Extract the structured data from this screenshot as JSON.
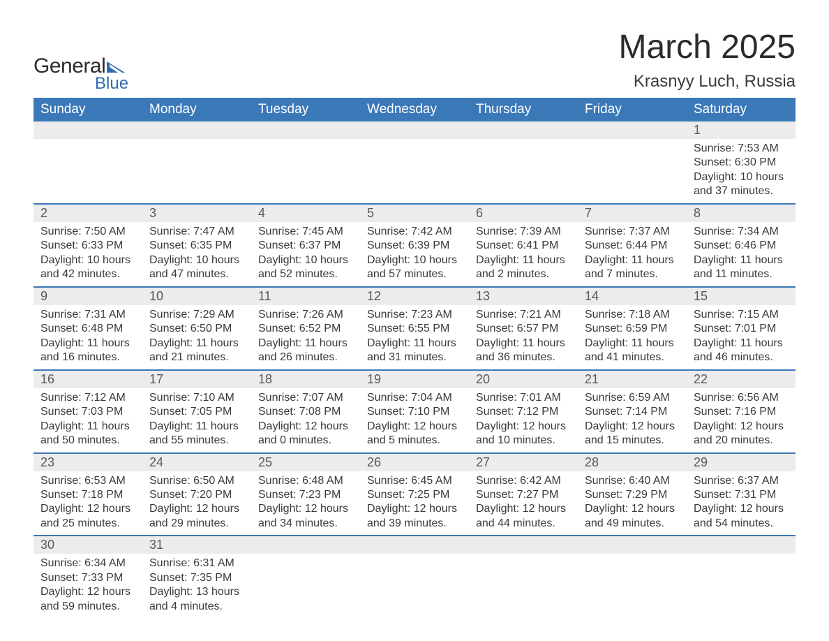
{
  "logo": {
    "general": "General",
    "blue": "Blue"
  },
  "title": "March 2025",
  "location": "Krasnyy Luch, Russia",
  "colors": {
    "header_bg": "#3b78b8",
    "header_text": "#ffffff",
    "daynum_bg": "#ececec",
    "daynum_text": "#595959",
    "body_text": "#3a3a3a",
    "border": "#3b78b8",
    "logo_blue": "#2e6bb0"
  },
  "dow": [
    "Sunday",
    "Monday",
    "Tuesday",
    "Wednesday",
    "Thursday",
    "Friday",
    "Saturday"
  ],
  "weeks": [
    [
      null,
      null,
      null,
      null,
      null,
      null,
      {
        "n": "1",
        "sr": "Sunrise: 7:53 AM",
        "ss": "Sunset: 6:30 PM",
        "d1": "Daylight: 10 hours",
        "d2": "and 37 minutes."
      }
    ],
    [
      {
        "n": "2",
        "sr": "Sunrise: 7:50 AM",
        "ss": "Sunset: 6:33 PM",
        "d1": "Daylight: 10 hours",
        "d2": "and 42 minutes."
      },
      {
        "n": "3",
        "sr": "Sunrise: 7:47 AM",
        "ss": "Sunset: 6:35 PM",
        "d1": "Daylight: 10 hours",
        "d2": "and 47 minutes."
      },
      {
        "n": "4",
        "sr": "Sunrise: 7:45 AM",
        "ss": "Sunset: 6:37 PM",
        "d1": "Daylight: 10 hours",
        "d2": "and 52 minutes."
      },
      {
        "n": "5",
        "sr": "Sunrise: 7:42 AM",
        "ss": "Sunset: 6:39 PM",
        "d1": "Daylight: 10 hours",
        "d2": "and 57 minutes."
      },
      {
        "n": "6",
        "sr": "Sunrise: 7:39 AM",
        "ss": "Sunset: 6:41 PM",
        "d1": "Daylight: 11 hours",
        "d2": "and 2 minutes."
      },
      {
        "n": "7",
        "sr": "Sunrise: 7:37 AM",
        "ss": "Sunset: 6:44 PM",
        "d1": "Daylight: 11 hours",
        "d2": "and 7 minutes."
      },
      {
        "n": "8",
        "sr": "Sunrise: 7:34 AM",
        "ss": "Sunset: 6:46 PM",
        "d1": "Daylight: 11 hours",
        "d2": "and 11 minutes."
      }
    ],
    [
      {
        "n": "9",
        "sr": "Sunrise: 7:31 AM",
        "ss": "Sunset: 6:48 PM",
        "d1": "Daylight: 11 hours",
        "d2": "and 16 minutes."
      },
      {
        "n": "10",
        "sr": "Sunrise: 7:29 AM",
        "ss": "Sunset: 6:50 PM",
        "d1": "Daylight: 11 hours",
        "d2": "and 21 minutes."
      },
      {
        "n": "11",
        "sr": "Sunrise: 7:26 AM",
        "ss": "Sunset: 6:52 PM",
        "d1": "Daylight: 11 hours",
        "d2": "and 26 minutes."
      },
      {
        "n": "12",
        "sr": "Sunrise: 7:23 AM",
        "ss": "Sunset: 6:55 PM",
        "d1": "Daylight: 11 hours",
        "d2": "and 31 minutes."
      },
      {
        "n": "13",
        "sr": "Sunrise: 7:21 AM",
        "ss": "Sunset: 6:57 PM",
        "d1": "Daylight: 11 hours",
        "d2": "and 36 minutes."
      },
      {
        "n": "14",
        "sr": "Sunrise: 7:18 AM",
        "ss": "Sunset: 6:59 PM",
        "d1": "Daylight: 11 hours",
        "d2": "and 41 minutes."
      },
      {
        "n": "15",
        "sr": "Sunrise: 7:15 AM",
        "ss": "Sunset: 7:01 PM",
        "d1": "Daylight: 11 hours",
        "d2": "and 46 minutes."
      }
    ],
    [
      {
        "n": "16",
        "sr": "Sunrise: 7:12 AM",
        "ss": "Sunset: 7:03 PM",
        "d1": "Daylight: 11 hours",
        "d2": "and 50 minutes."
      },
      {
        "n": "17",
        "sr": "Sunrise: 7:10 AM",
        "ss": "Sunset: 7:05 PM",
        "d1": "Daylight: 11 hours",
        "d2": "and 55 minutes."
      },
      {
        "n": "18",
        "sr": "Sunrise: 7:07 AM",
        "ss": "Sunset: 7:08 PM",
        "d1": "Daylight: 12 hours",
        "d2": "and 0 minutes."
      },
      {
        "n": "19",
        "sr": "Sunrise: 7:04 AM",
        "ss": "Sunset: 7:10 PM",
        "d1": "Daylight: 12 hours",
        "d2": "and 5 minutes."
      },
      {
        "n": "20",
        "sr": "Sunrise: 7:01 AM",
        "ss": "Sunset: 7:12 PM",
        "d1": "Daylight: 12 hours",
        "d2": "and 10 minutes."
      },
      {
        "n": "21",
        "sr": "Sunrise: 6:59 AM",
        "ss": "Sunset: 7:14 PM",
        "d1": "Daylight: 12 hours",
        "d2": "and 15 minutes."
      },
      {
        "n": "22",
        "sr": "Sunrise: 6:56 AM",
        "ss": "Sunset: 7:16 PM",
        "d1": "Daylight: 12 hours",
        "d2": "and 20 minutes."
      }
    ],
    [
      {
        "n": "23",
        "sr": "Sunrise: 6:53 AM",
        "ss": "Sunset: 7:18 PM",
        "d1": "Daylight: 12 hours",
        "d2": "and 25 minutes."
      },
      {
        "n": "24",
        "sr": "Sunrise: 6:50 AM",
        "ss": "Sunset: 7:20 PM",
        "d1": "Daylight: 12 hours",
        "d2": "and 29 minutes."
      },
      {
        "n": "25",
        "sr": "Sunrise: 6:48 AM",
        "ss": "Sunset: 7:23 PM",
        "d1": "Daylight: 12 hours",
        "d2": "and 34 minutes."
      },
      {
        "n": "26",
        "sr": "Sunrise: 6:45 AM",
        "ss": "Sunset: 7:25 PM",
        "d1": "Daylight: 12 hours",
        "d2": "and 39 minutes."
      },
      {
        "n": "27",
        "sr": "Sunrise: 6:42 AM",
        "ss": "Sunset: 7:27 PM",
        "d1": "Daylight: 12 hours",
        "d2": "and 44 minutes."
      },
      {
        "n": "28",
        "sr": "Sunrise: 6:40 AM",
        "ss": "Sunset: 7:29 PM",
        "d1": "Daylight: 12 hours",
        "d2": "and 49 minutes."
      },
      {
        "n": "29",
        "sr": "Sunrise: 6:37 AM",
        "ss": "Sunset: 7:31 PM",
        "d1": "Daylight: 12 hours",
        "d2": "and 54 minutes."
      }
    ],
    [
      {
        "n": "30",
        "sr": "Sunrise: 6:34 AM",
        "ss": "Sunset: 7:33 PM",
        "d1": "Daylight: 12 hours",
        "d2": "and 59 minutes."
      },
      {
        "n": "31",
        "sr": "Sunrise: 6:31 AM",
        "ss": "Sunset: 7:35 PM",
        "d1": "Daylight: 13 hours",
        "d2": "and 4 minutes."
      },
      null,
      null,
      null,
      null,
      null
    ]
  ]
}
